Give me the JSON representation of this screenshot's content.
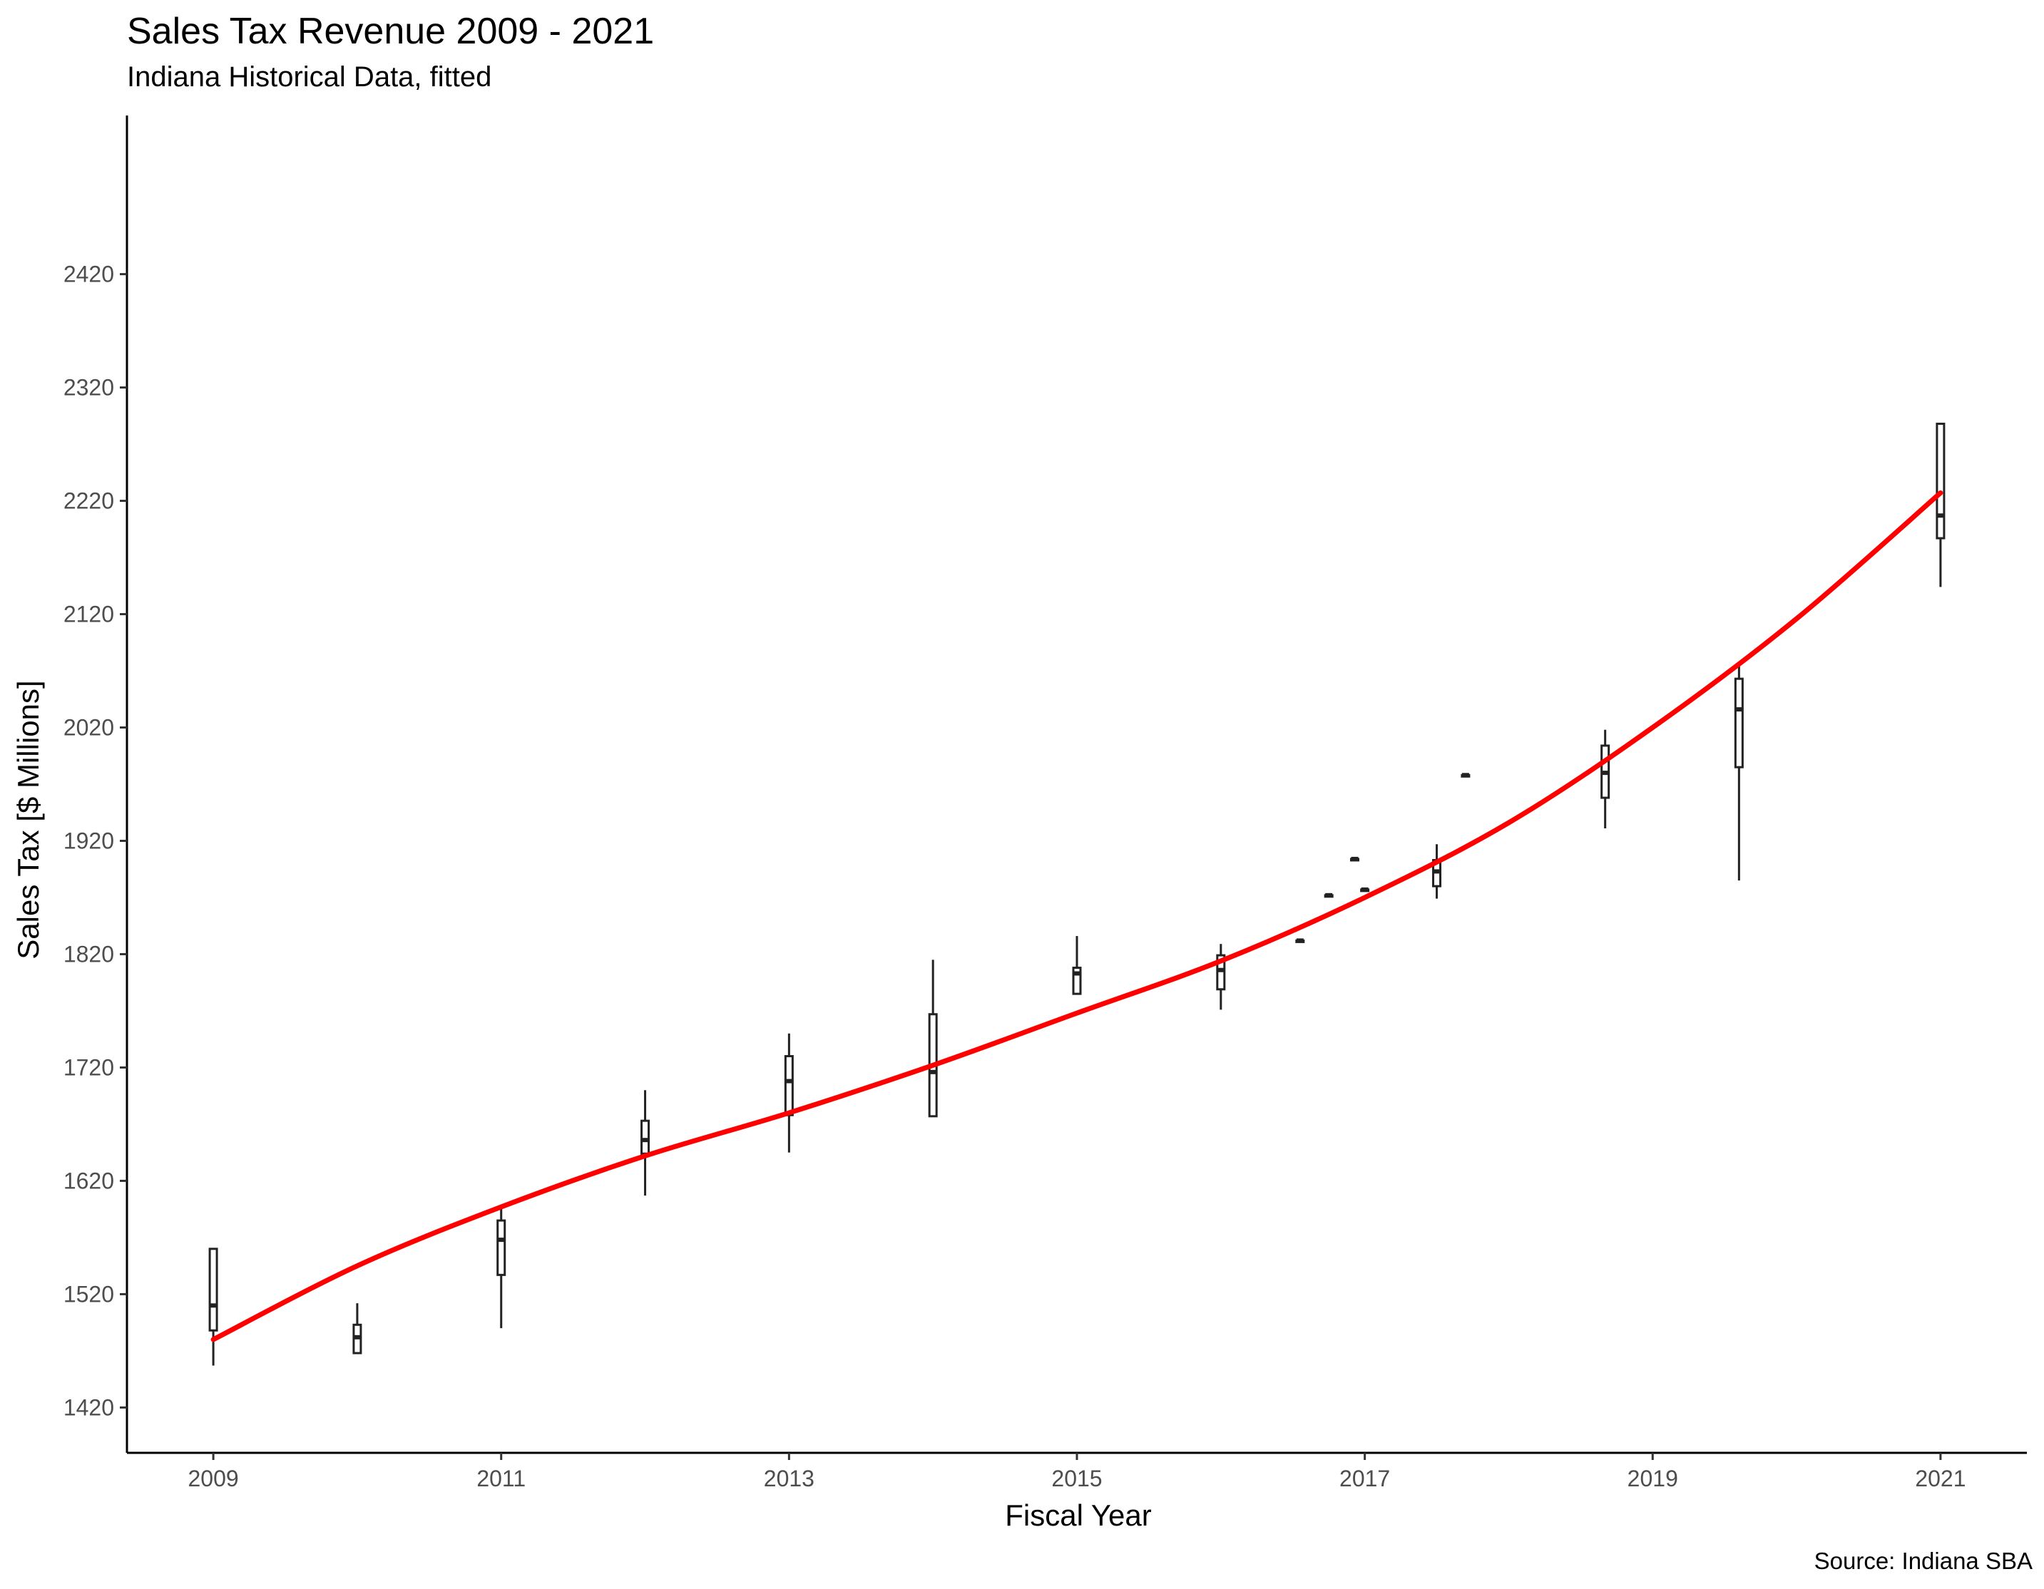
{
  "chart_data": {
    "type": "box",
    "title": "Sales Tax Revenue 2009 - 2021",
    "subtitle": "Indiana Historical Data, fitted",
    "xlabel": "Fiscal Year",
    "ylabel": "Sales Tax [$ Millions]",
    "caption": "Source: Indiana SBA",
    "xlim": [
      2008.4,
      2021.6
    ],
    "ylim": [
      1380,
      2560
    ],
    "x_ticks": [
      2009,
      2011,
      2013,
      2015,
      2017,
      2019,
      2021
    ],
    "y_ticks": [
      1420,
      1520,
      1620,
      1720,
      1820,
      1920,
      2020,
      2120,
      2220,
      2320,
      2420
    ],
    "grid": false,
    "boxes": [
      {
        "x": 2009.0,
        "min": 1457,
        "q1": 1488,
        "median": 1510,
        "q3": 1560,
        "max": 1560
      },
      {
        "x": 2010.0,
        "min": 1468,
        "q1": 1468,
        "median": 1482,
        "q3": 1493,
        "max": 1512
      },
      {
        "x": 2011.0,
        "min": 1490,
        "q1": 1537,
        "median": 1568,
        "q3": 1585,
        "max": 1597
      },
      {
        "x": 2012.0,
        "min": 1607,
        "q1": 1644,
        "median": 1656,
        "q3": 1673,
        "max": 1700
      },
      {
        "x": 2013.0,
        "min": 1645,
        "q1": 1678,
        "median": 1708,
        "q3": 1730,
        "max": 1750
      },
      {
        "x": 2014.0,
        "min": 1677,
        "q1": 1677,
        "median": 1716,
        "q3": 1767,
        "max": 1815
      },
      {
        "x": 2015.0,
        "min": 1785,
        "q1": 1785,
        "median": 1803,
        "q3": 1808,
        "max": 1836
      },
      {
        "x": 2016.0,
        "min": 1771,
        "q1": 1789,
        "median": 1806,
        "q3": 1819,
        "max": 1829
      },
      {
        "x": 2016.55,
        "min": 1832,
        "q1": 1832,
        "median": 1832,
        "q3": 1832,
        "max": 1832
      },
      {
        "x": 2016.75,
        "min": 1872,
        "q1": 1872,
        "median": 1872,
        "q3": 1872,
        "max": 1872
      },
      {
        "x": 2016.93,
        "min": 1904,
        "q1": 1904,
        "median": 1904,
        "q3": 1904,
        "max": 1904
      },
      {
        "x": 2017.0,
        "min": 1877,
        "q1": 1877,
        "median": 1877,
        "q3": 1877,
        "max": 1877
      },
      {
        "x": 2017.5,
        "min": 1869,
        "q1": 1880,
        "median": 1893,
        "q3": 1903,
        "max": 1917
      },
      {
        "x": 2017.7,
        "min": 1978,
        "q1": 1978,
        "median": 1978,
        "q3": 1978,
        "max": 1978
      },
      {
        "x": 2018.67,
        "min": 1931,
        "q1": 1958,
        "median": 1980,
        "q3": 2004,
        "max": 2018
      },
      {
        "x": 2019.6,
        "min": 1885,
        "q1": 1985,
        "median": 2036,
        "q3": 2063,
        "max": 2078
      },
      {
        "x": 2021.0,
        "min": 2144,
        "q1": 2187,
        "median": 2207,
        "q3": 2288,
        "max": 2288
      }
    ],
    "fit": {
      "color": "#ff0000",
      "x": [
        2009,
        2010,
        2011,
        2012,
        2013,
        2014,
        2015,
        2016,
        2017,
        2018,
        2019,
        2020,
        2021
      ],
      "y": [
        1480,
        1545,
        1597,
        1642,
        1680,
        1722,
        1768,
        1814,
        1870,
        1936,
        2020,
        2116,
        2227
      ]
    }
  }
}
